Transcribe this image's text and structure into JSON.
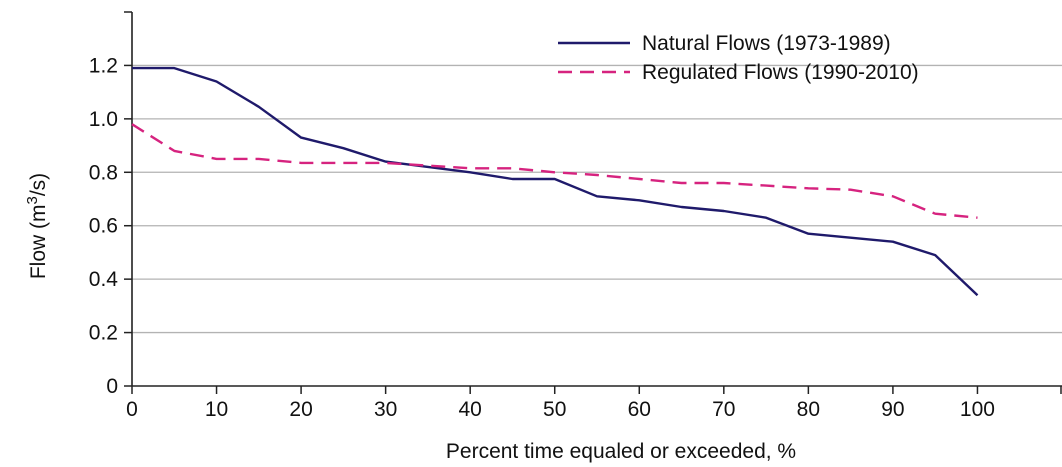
{
  "chart_data": {
    "type": "line",
    "title": "",
    "xlabel": "Percent time equaled or exceeded, %",
    "ylabel": {
      "prefix": "Flow (m",
      "sup": "3",
      "suffix": "/s)"
    },
    "xlim": [
      0,
      110
    ],
    "ylim": [
      0,
      1.4
    ],
    "xticks": [
      "0",
      "10",
      "20",
      "30",
      "40",
      "50",
      "60",
      "70",
      "80",
      "90",
      "100"
    ],
    "yticks": [
      "0",
      "0.2",
      "0.4",
      "0.6",
      "0.8",
      "1.0",
      "1.2"
    ],
    "grid": "horizontal",
    "legend_position": "top-right",
    "series": [
      {
        "name": "Natural Flows (1973-1989)",
        "color": "#1f1a6b",
        "style": "solid",
        "x": [
          0,
          5,
          10,
          15,
          20,
          25,
          30,
          35,
          40,
          45,
          50,
          55,
          60,
          65,
          70,
          75,
          80,
          85,
          90,
          95,
          100
        ],
        "values": [
          1.19,
          1.19,
          1.14,
          1.045,
          0.93,
          0.89,
          0.84,
          0.82,
          0.8,
          0.775,
          0.775,
          0.71,
          0.695,
          0.67,
          0.655,
          0.63,
          0.57,
          0.555,
          0.54,
          0.49,
          0.34
        ]
      },
      {
        "name": "Regulated Flows (1990-2010)",
        "color": "#d6237f",
        "style": "dashed",
        "x": [
          0,
          5,
          10,
          15,
          20,
          25,
          30,
          35,
          40,
          45,
          50,
          55,
          60,
          65,
          70,
          75,
          80,
          85,
          90,
          95,
          100
        ],
        "values": [
          0.98,
          0.88,
          0.85,
          0.85,
          0.835,
          0.835,
          0.835,
          0.825,
          0.815,
          0.815,
          0.8,
          0.79,
          0.775,
          0.76,
          0.76,
          0.75,
          0.74,
          0.735,
          0.71,
          0.645,
          0.63
        ]
      }
    ]
  }
}
